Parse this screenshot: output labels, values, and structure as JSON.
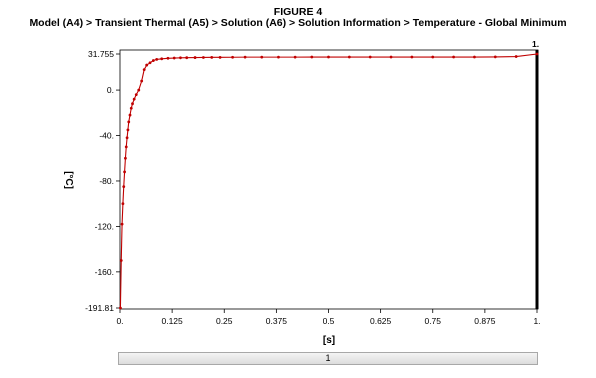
{
  "figure": {
    "label": "FIGURE 4",
    "breadcrumb": "Model (A4) > Transient Thermal (A5) > Solution (A6) > Solution Information > Temperature - Global Minimum"
  },
  "chart_data": {
    "type": "line",
    "xlabel": "[s]",
    "ylabel": "[°C]",
    "xlim": [
      0,
      1
    ],
    "ylim": [
      -191.81,
      31.755
    ],
    "x_tick_labels": [
      "0.",
      "0.125",
      "0.25",
      "0.375",
      "0.5",
      "0.625",
      "0.75",
      "0.875",
      "1."
    ],
    "x_tick_values": [
      0,
      0.125,
      0.25,
      0.375,
      0.5,
      0.625,
      0.75,
      0.875,
      1
    ],
    "y_tick_labels": [
      "31.755",
      "0.",
      "-40.",
      "-80.",
      "-120.",
      "-160.",
      "-191.81"
    ],
    "y_tick_values": [
      31.755,
      0,
      -40,
      -80,
      -120,
      -160,
      -191.81
    ],
    "top_right_label": "1.",
    "grid": false,
    "series": [
      {
        "color": "#c00000",
        "x": [
          0.001,
          0.003,
          0.005,
          0.007,
          0.009,
          0.011,
          0.013,
          0.015,
          0.017,
          0.019,
          0.021,
          0.024,
          0.027,
          0.03,
          0.034,
          0.039,
          0.045,
          0.052,
          0.058,
          0.064,
          0.072,
          0.08,
          0.088,
          0.1,
          0.115,
          0.13,
          0.145,
          0.16,
          0.18,
          0.2,
          0.22,
          0.24,
          0.27,
          0.3,
          0.34,
          0.38,
          0.42,
          0.46,
          0.5,
          0.55,
          0.6,
          0.65,
          0.7,
          0.75,
          0.8,
          0.85,
          0.9,
          0.95,
          1.0
        ],
        "y": [
          -191.81,
          -150,
          -118,
          -100,
          -85,
          -72,
          -60,
          -50,
          -42,
          -35,
          -28,
          -22,
          -16,
          -12,
          -8,
          -4,
          0,
          8,
          18,
          22,
          24,
          26,
          27,
          27.5,
          28,
          28.2,
          28.4,
          28.5,
          28.6,
          28.7,
          28.8,
          28.8,
          28.9,
          29,
          29,
          29,
          29,
          29.1,
          29.1,
          29.1,
          29.1,
          29.1,
          29.1,
          29.1,
          29.1,
          29.1,
          29.2,
          29.5,
          31.755
        ]
      }
    ]
  },
  "timeline": {
    "label": "1"
  }
}
